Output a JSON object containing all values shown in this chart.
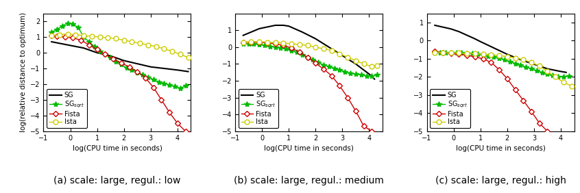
{
  "panels": [
    {
      "title": "(a) scale: large, regul.: low",
      "xlim": [
        -1,
        4.5
      ],
      "ylim": [
        -5,
        2.5
      ],
      "xticks": [
        -1,
        0,
        1,
        2,
        3,
        4
      ],
      "yticks": [
        -5,
        -4,
        -3,
        -2,
        -1,
        0,
        1,
        2
      ],
      "sg": {
        "x": [
          -0.7,
          0.5,
          1.0,
          1.5,
          2.0,
          2.5,
          3.0,
          3.5,
          4.0,
          4.4
        ],
        "y": [
          0.7,
          0.3,
          0.0,
          -0.2,
          -0.5,
          -0.7,
          -0.9,
          -1.0,
          -1.1,
          -1.2
        ]
      },
      "sg_sqrt": {
        "x": [
          -0.7,
          -0.5,
          -0.3,
          -0.1,
          0.1,
          0.3,
          0.5,
          0.7,
          0.9,
          1.1,
          1.3,
          1.5,
          1.7,
          1.9,
          2.1,
          2.3,
          2.5,
          2.7,
          2.9,
          3.1,
          3.3,
          3.5,
          3.7,
          3.9,
          4.1,
          4.3
        ],
        "y": [
          1.3,
          1.5,
          1.7,
          1.9,
          1.85,
          1.6,
          1.0,
          0.7,
          0.4,
          0.1,
          -0.1,
          -0.3,
          -0.55,
          -0.75,
          -0.95,
          -1.1,
          -1.25,
          -1.4,
          -1.55,
          -1.7,
          -1.85,
          -1.95,
          -2.05,
          -2.15,
          -2.25,
          -2.1
        ]
      },
      "fista": {
        "x": [
          -0.7,
          -0.5,
          -0.2,
          0.1,
          0.4,
          0.7,
          1.0,
          1.3,
          1.6,
          1.9,
          2.2,
          2.5,
          2.8,
          3.1,
          3.4,
          3.7,
          4.0,
          4.3
        ],
        "y": [
          1.1,
          1.05,
          1.0,
          0.95,
          0.8,
          0.5,
          0.2,
          -0.1,
          -0.4,
          -0.65,
          -0.9,
          -1.2,
          -1.6,
          -2.2,
          -3.0,
          -3.8,
          -4.5,
          -5.0
        ]
      },
      "ista": {
        "x": [
          -0.7,
          -0.4,
          -0.1,
          0.2,
          0.5,
          0.8,
          1.1,
          1.4,
          1.7,
          2.0,
          2.3,
          2.6,
          2.9,
          3.2,
          3.5,
          3.8,
          4.1,
          4.4
        ],
        "y": [
          1.1,
          1.15,
          1.2,
          1.15,
          1.1,
          1.05,
          1.0,
          0.95,
          0.9,
          0.8,
          0.7,
          0.6,
          0.5,
          0.4,
          0.25,
          0.1,
          -0.1,
          -0.3
        ]
      }
    },
    {
      "title": "(b) scale: large, regul.: medium",
      "xlim": [
        -1,
        4.5
      ],
      "ylim": [
        -5,
        2.0
      ],
      "xticks": [
        -1,
        0,
        1,
        2,
        3,
        4
      ],
      "yticks": [
        -5,
        -4,
        -3,
        -2,
        -1,
        0,
        1
      ],
      "sg": {
        "x": [
          -0.7,
          -0.4,
          -0.1,
          0.2,
          0.5,
          0.8,
          1.0,
          1.5,
          2.0,
          2.5,
          3.0,
          3.5,
          4.0,
          4.2
        ],
        "y": [
          0.7,
          0.9,
          1.1,
          1.2,
          1.3,
          1.3,
          1.25,
          0.9,
          0.5,
          0.0,
          -0.5,
          -1.0,
          -1.6,
          -1.9
        ]
      },
      "sg_sqrt": {
        "x": [
          -0.7,
          -0.5,
          -0.3,
          -0.1,
          0.1,
          0.3,
          0.5,
          0.7,
          0.9,
          1.1,
          1.3,
          1.5,
          1.7,
          1.9,
          2.1,
          2.3,
          2.5,
          2.7,
          2.9,
          3.1,
          3.3,
          3.5,
          3.7,
          3.9,
          4.1,
          4.3
        ],
        "y": [
          0.2,
          0.2,
          0.2,
          0.15,
          0.1,
          0.05,
          0.0,
          -0.05,
          -0.1,
          -0.2,
          -0.3,
          -0.45,
          -0.6,
          -0.75,
          -0.9,
          -1.05,
          -1.15,
          -1.25,
          -1.35,
          -1.45,
          -1.55,
          -1.6,
          -1.65,
          -1.7,
          -1.72,
          -1.65
        ]
      },
      "fista": {
        "x": [
          -0.7,
          -0.4,
          -0.1,
          0.2,
          0.5,
          0.8,
          1.1,
          1.4,
          1.7,
          2.0,
          2.3,
          2.6,
          2.9,
          3.2,
          3.5,
          3.8,
          4.1
        ],
        "y": [
          0.3,
          0.3,
          0.3,
          0.25,
          0.2,
          0.1,
          -0.05,
          -0.3,
          -0.6,
          -0.95,
          -1.3,
          -1.7,
          -2.3,
          -3.0,
          -3.8,
          -4.7,
          -5.0
        ]
      },
      "ista": {
        "x": [
          -0.7,
          -0.4,
          -0.1,
          0.2,
          0.5,
          0.8,
          1.1,
          1.4,
          1.7,
          2.0,
          2.3,
          2.6,
          2.9,
          3.2,
          3.5,
          3.8,
          4.1,
          4.3
        ],
        "y": [
          0.3,
          0.33,
          0.33,
          0.3,
          0.28,
          0.25,
          0.2,
          0.15,
          0.1,
          0.0,
          -0.1,
          -0.2,
          -0.4,
          -0.6,
          -0.8,
          -1.0,
          -1.15,
          -1.1
        ]
      }
    },
    {
      "title": "(c) scale: large, regul.: high",
      "xlim": [
        -1,
        4.5
      ],
      "ylim": [
        -5,
        1.5
      ],
      "xticks": [
        -1,
        0,
        1,
        2,
        3,
        4
      ],
      "yticks": [
        -5,
        -4,
        -3,
        -2,
        -1,
        0,
        1
      ],
      "sg": {
        "x": [
          -0.7,
          -0.4,
          -0.1,
          0.2,
          0.5,
          0.8,
          1.0,
          1.5,
          2.0,
          2.5,
          3.0,
          3.5,
          4.0,
          4.2
        ],
        "y": [
          0.85,
          0.75,
          0.65,
          0.5,
          0.3,
          0.1,
          -0.05,
          -0.4,
          -0.75,
          -1.05,
          -1.3,
          -1.55,
          -1.7,
          -1.75
        ]
      },
      "sg_sqrt": {
        "x": [
          -0.7,
          -0.5,
          -0.3,
          -0.1,
          0.1,
          0.3,
          0.5,
          0.7,
          0.9,
          1.1,
          1.3,
          1.5,
          1.7,
          1.9,
          2.1,
          2.3,
          2.5,
          2.7,
          2.9,
          3.1,
          3.3,
          3.5,
          3.7,
          3.9,
          4.1,
          4.3
        ],
        "y": [
          -0.65,
          -0.65,
          -0.65,
          -0.65,
          -0.67,
          -0.68,
          -0.7,
          -0.72,
          -0.75,
          -0.8,
          -0.85,
          -0.9,
          -0.95,
          -1.05,
          -1.15,
          -1.25,
          -1.35,
          -1.45,
          -1.55,
          -1.65,
          -1.75,
          -1.85,
          -1.92,
          -2.0,
          -2.0,
          -1.95
        ]
      },
      "fista": {
        "x": [
          -0.7,
          -0.4,
          -0.1,
          0.2,
          0.5,
          0.8,
          1.1,
          1.4,
          1.7,
          2.0,
          2.3,
          2.6,
          2.9,
          3.2,
          3.5
        ],
        "y": [
          -0.6,
          -0.65,
          -0.7,
          -0.75,
          -0.8,
          -0.9,
          -1.0,
          -1.2,
          -1.6,
          -2.1,
          -2.7,
          -3.3,
          -3.9,
          -4.55,
          -5.0
        ]
      },
      "ista": {
        "x": [
          -0.7,
          -0.4,
          -0.1,
          0.2,
          0.5,
          0.8,
          1.1,
          1.4,
          1.7,
          2.0,
          2.3,
          2.6,
          2.9,
          3.2,
          3.5,
          3.8,
          4.1,
          4.4
        ],
        "y": [
          -0.65,
          -0.65,
          -0.68,
          -0.68,
          -0.7,
          -0.72,
          -0.75,
          -0.78,
          -0.82,
          -0.88,
          -0.95,
          -1.05,
          -1.2,
          -1.4,
          -1.7,
          -2.0,
          -2.3,
          -2.5
        ]
      }
    }
  ],
  "colors": {
    "sg": "#000000",
    "sg_sqrt": "#00bb00",
    "fista": "#cc0000",
    "ista": "#cccc00"
  },
  "xlabel": "log(CPU time in seconds)",
  "ylabel": "log(relative distance to optimum)",
  "label_fontsize": 7.5,
  "tick_fontsize": 7,
  "legend_fontsize": 7,
  "subtitle_fontsize": 10
}
